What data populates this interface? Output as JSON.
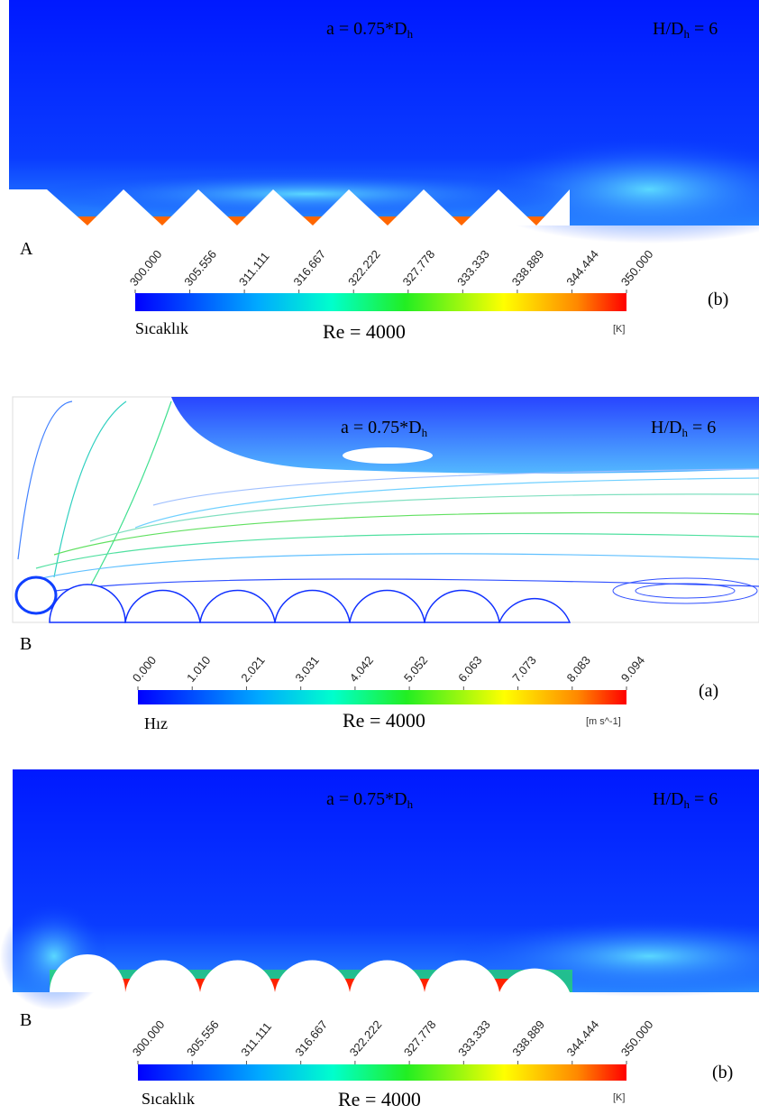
{
  "panels": [
    {
      "letter": "A",
      "tag": "(b)",
      "param": {
        "main": "a = 0.75*D",
        "sub": "h"
      },
      "ratio": {
        "pre": "H/D",
        "sub": "h",
        "post": " = 6"
      },
      "colorbar": {
        "variable": "Sıcaklık",
        "unit": "[K]",
        "ticks": [
          "300.000",
          "305.556",
          "311.111",
          "316.667",
          "322.222",
          "327.778",
          "333.333",
          "338.889",
          "344.444",
          "350.000"
        ]
      },
      "re": "Re = 4000"
    },
    {
      "letter": "B",
      "tag": "(a)",
      "param": {
        "main": "a = 0.75*D",
        "sub": "h"
      },
      "ratio": {
        "pre": "H/D",
        "sub": "h",
        "post": " = 6"
      },
      "colorbar": {
        "variable": "Hız",
        "unit": "[m s^-1]",
        "ticks": [
          "0.000",
          "1.010",
          "2.021",
          "3.031",
          "4.042",
          "5.052",
          "6.063",
          "7.073",
          "8.083",
          "9.094"
        ]
      },
      "re": "Re = 4000"
    },
    {
      "letter": "B",
      "tag": "(b)",
      "param": {
        "main": "a = 0.75*D",
        "sub": "h"
      },
      "ratio": {
        "pre": "H/D",
        "sub": "h",
        "post": " = 6"
      },
      "colorbar": {
        "variable": "Sıcaklık",
        "unit": "[K]",
        "ticks": [
          "300.000",
          "305.556",
          "311.111",
          "316.667",
          "322.222",
          "327.778",
          "333.333",
          "338.889",
          "344.444",
          "350.000"
        ]
      },
      "re": "Re = 4000"
    }
  ]
}
